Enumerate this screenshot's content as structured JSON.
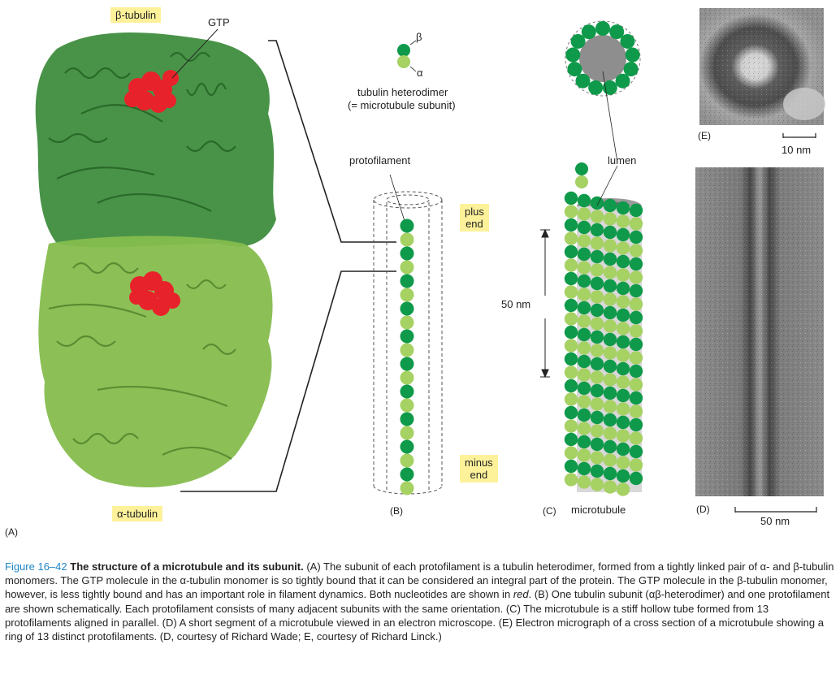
{
  "labels": {
    "beta_tubulin": "β-tubulin",
    "gtp": "GTP",
    "alpha_tubulin": "α-tubulin",
    "panel_a": "(A)",
    "beta": "β",
    "alpha": "α",
    "heterodimer_line1": "tubulin heterodimer",
    "heterodimer_line2": "(= microtubule subunit)",
    "protofilament": "protofilament",
    "plus_end_1": "plus",
    "plus_end_2": "end",
    "minus_end_1": "minus",
    "minus_end_2": "end",
    "panel_b": "(B)",
    "lumen": "lumen",
    "scale_50nm": "50 nm",
    "panel_c": "(C)",
    "microtubule": "microtubule",
    "panel_e": "(E)",
    "scale_10nm": "10 nm",
    "panel_d": "(D)",
    "scale_50nm_d": "50 nm"
  },
  "caption": {
    "figure_number": "Figure 16–42",
    "title": "The structure of a microtubule and its subunit.",
    "text_1": "(A) The subunit of each protofilament is a tubulin heterodimer, formed from a tightly linked pair of α- and β-tubulin monomers. The GTP molecule in the α-tubulin monomer is so tightly bound that it can be considered an integral part of the protein. The GTP molecule in the β-tubulin monomer, however, is less tightly bound and has an important role in filament dynamics. Both nucleotides are shown in",
    "red_word": "red",
    "text_2": ". (B) One tubulin subunit (αβ-heterodimer) and one protofilament are shown schematically. Each protofilament consists of many adjacent subunits with the same orientation. (C) The microtubule is a stiff hollow tube formed from 13 protofilaments aligned in parallel. (D) A short segment of a microtubule viewed in an electron microscope. (E) Electron micrograph of a cross section of a microtubule showing a ring of 13 distinct protofilaments. (D, courtesy of Richard Wade; E, courtesy of Richard Linck.)"
  },
  "colors": {
    "beta_green": "#0e9a4a",
    "alpha_green": "#a6d163",
    "protein_dark": "#3a8a3a",
    "protein_light": "#86bd4e",
    "gtp_red": "#e8222a",
    "label_bg": "#fdf19a",
    "caption_blue": "#1f86c7",
    "lumen_gray": "#8e8e8e"
  },
  "icons": [
    "ribbon-protein-structure",
    "gtp-molecule",
    "cylinder-schematic",
    "microtubule-model",
    "electron-micrograph"
  ]
}
